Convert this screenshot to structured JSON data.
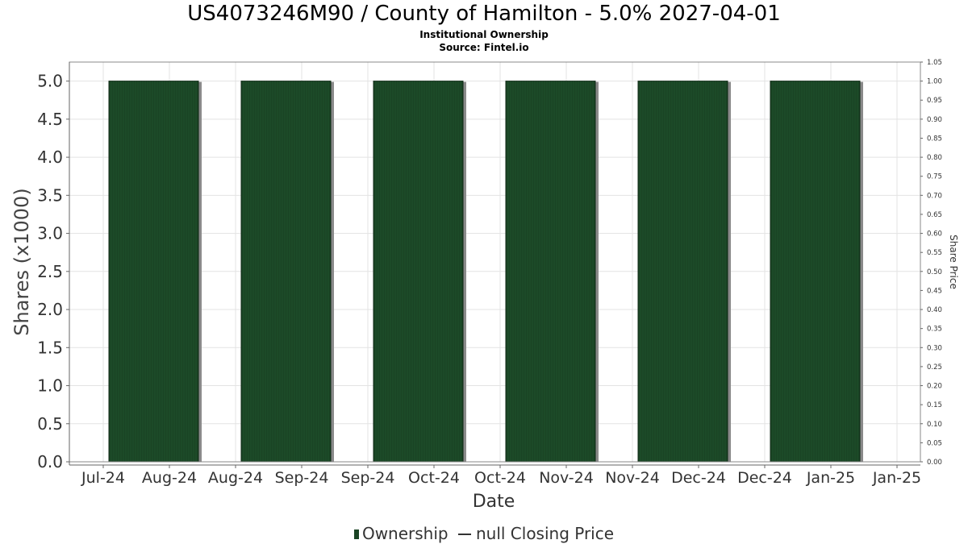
{
  "chart_data": {
    "type": "bar",
    "title": "US4073246M90 / County of Hamilton - 5.0% 2027-04-01",
    "subtitle_lines": [
      "Institutional Ownership",
      "Source: Fintel.io"
    ],
    "xlabel": "Date",
    "ylabel": "Shares (x1000)",
    "y2label": "Share Price",
    "ylim": [
      0,
      5.25
    ],
    "y2lim": [
      0,
      1.05
    ],
    "yticks": [
      "0.0",
      "0.5",
      "1.0",
      "1.5",
      "2.0",
      "2.5",
      "3.0",
      "3.5",
      "4.0",
      "4.5",
      "5.0"
    ],
    "y2ticks": [
      "0.00",
      "0.05",
      "0.10",
      "0.15",
      "0.20",
      "0.25",
      "0.30",
      "0.35",
      "0.40",
      "0.45",
      "0.50",
      "0.55",
      "0.60",
      "0.65",
      "0.70",
      "0.75",
      "0.80",
      "0.85",
      "0.90",
      "0.95",
      "1.00",
      "1.05"
    ],
    "xticks": [
      "Jul-24",
      "Aug-24",
      "Aug-24",
      "Sep-24",
      "Sep-24",
      "Oct-24",
      "Oct-24",
      "Nov-24",
      "Nov-24",
      "Dec-24",
      "Dec-24",
      "Jan-25",
      "Jan-25"
    ],
    "grid": true,
    "legend_placement": "bottom",
    "series": [
      {
        "name": "Ownership",
        "color": "#1a4424",
        "bars": [
          {
            "start": "Jul-24",
            "end": "Aug-24",
            "value": 5.0
          },
          {
            "start": "Aug-24",
            "end": "Sep-24",
            "value": 5.0
          },
          {
            "start": "Sep-24",
            "end": "Oct-24",
            "value": 5.0
          },
          {
            "start": "Oct-24",
            "end": "Nov-24",
            "value": 5.0
          },
          {
            "start": "Nov-24",
            "end": "Dec-24",
            "value": 5.0
          },
          {
            "start": "Dec-24",
            "end": "Jan-25",
            "value": 5.0
          }
        ]
      },
      {
        "name": "null Closing Price",
        "color": "#333333",
        "values": []
      }
    ]
  }
}
